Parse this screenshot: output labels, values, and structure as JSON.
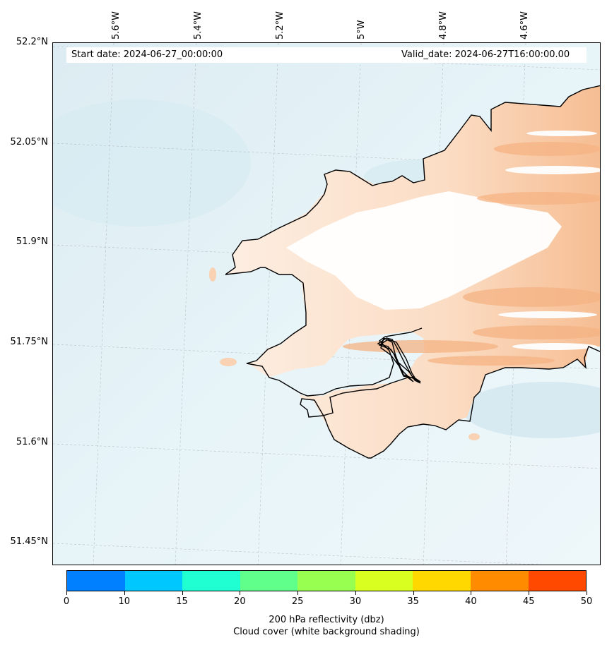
{
  "header": {
    "start_date": "Start date: 2024-06-27_00:00:00",
    "valid_date": "Valid_date: 2024-06-27T16:00:00.00"
  },
  "axes": {
    "lat_labels": [
      "52.2°N",
      "52.05°N",
      "51.9°N",
      "51.75°N",
      "51.6°N",
      "51.45°N"
    ],
    "lon_labels": [
      "5.6°W",
      "5.4°W",
      "5.2°W",
      "5°W",
      "4.8°W",
      "4.6°W"
    ]
  },
  "colorbar": {
    "ticks": [
      "0",
      "10",
      "15",
      "20",
      "25",
      "30",
      "35",
      "40",
      "45",
      "50"
    ],
    "colors": [
      "#0080ff",
      "#00c8ff",
      "#20ffd2",
      "#60ff8c",
      "#98ff50",
      "#d8ff20",
      "#ffd800",
      "#ff8c00",
      "#ff4800"
    ],
    "title_line1": "200 hPa reflectivity (dbz)",
    "title_line2": "Cloud cover (white background shading)"
  },
  "colors": {
    "sea": "#e6f3f7",
    "sea_dark": "#d3eaf1",
    "land_cloud": "#fde6d3",
    "orange": "#f5b383",
    "coast": "#000000"
  }
}
